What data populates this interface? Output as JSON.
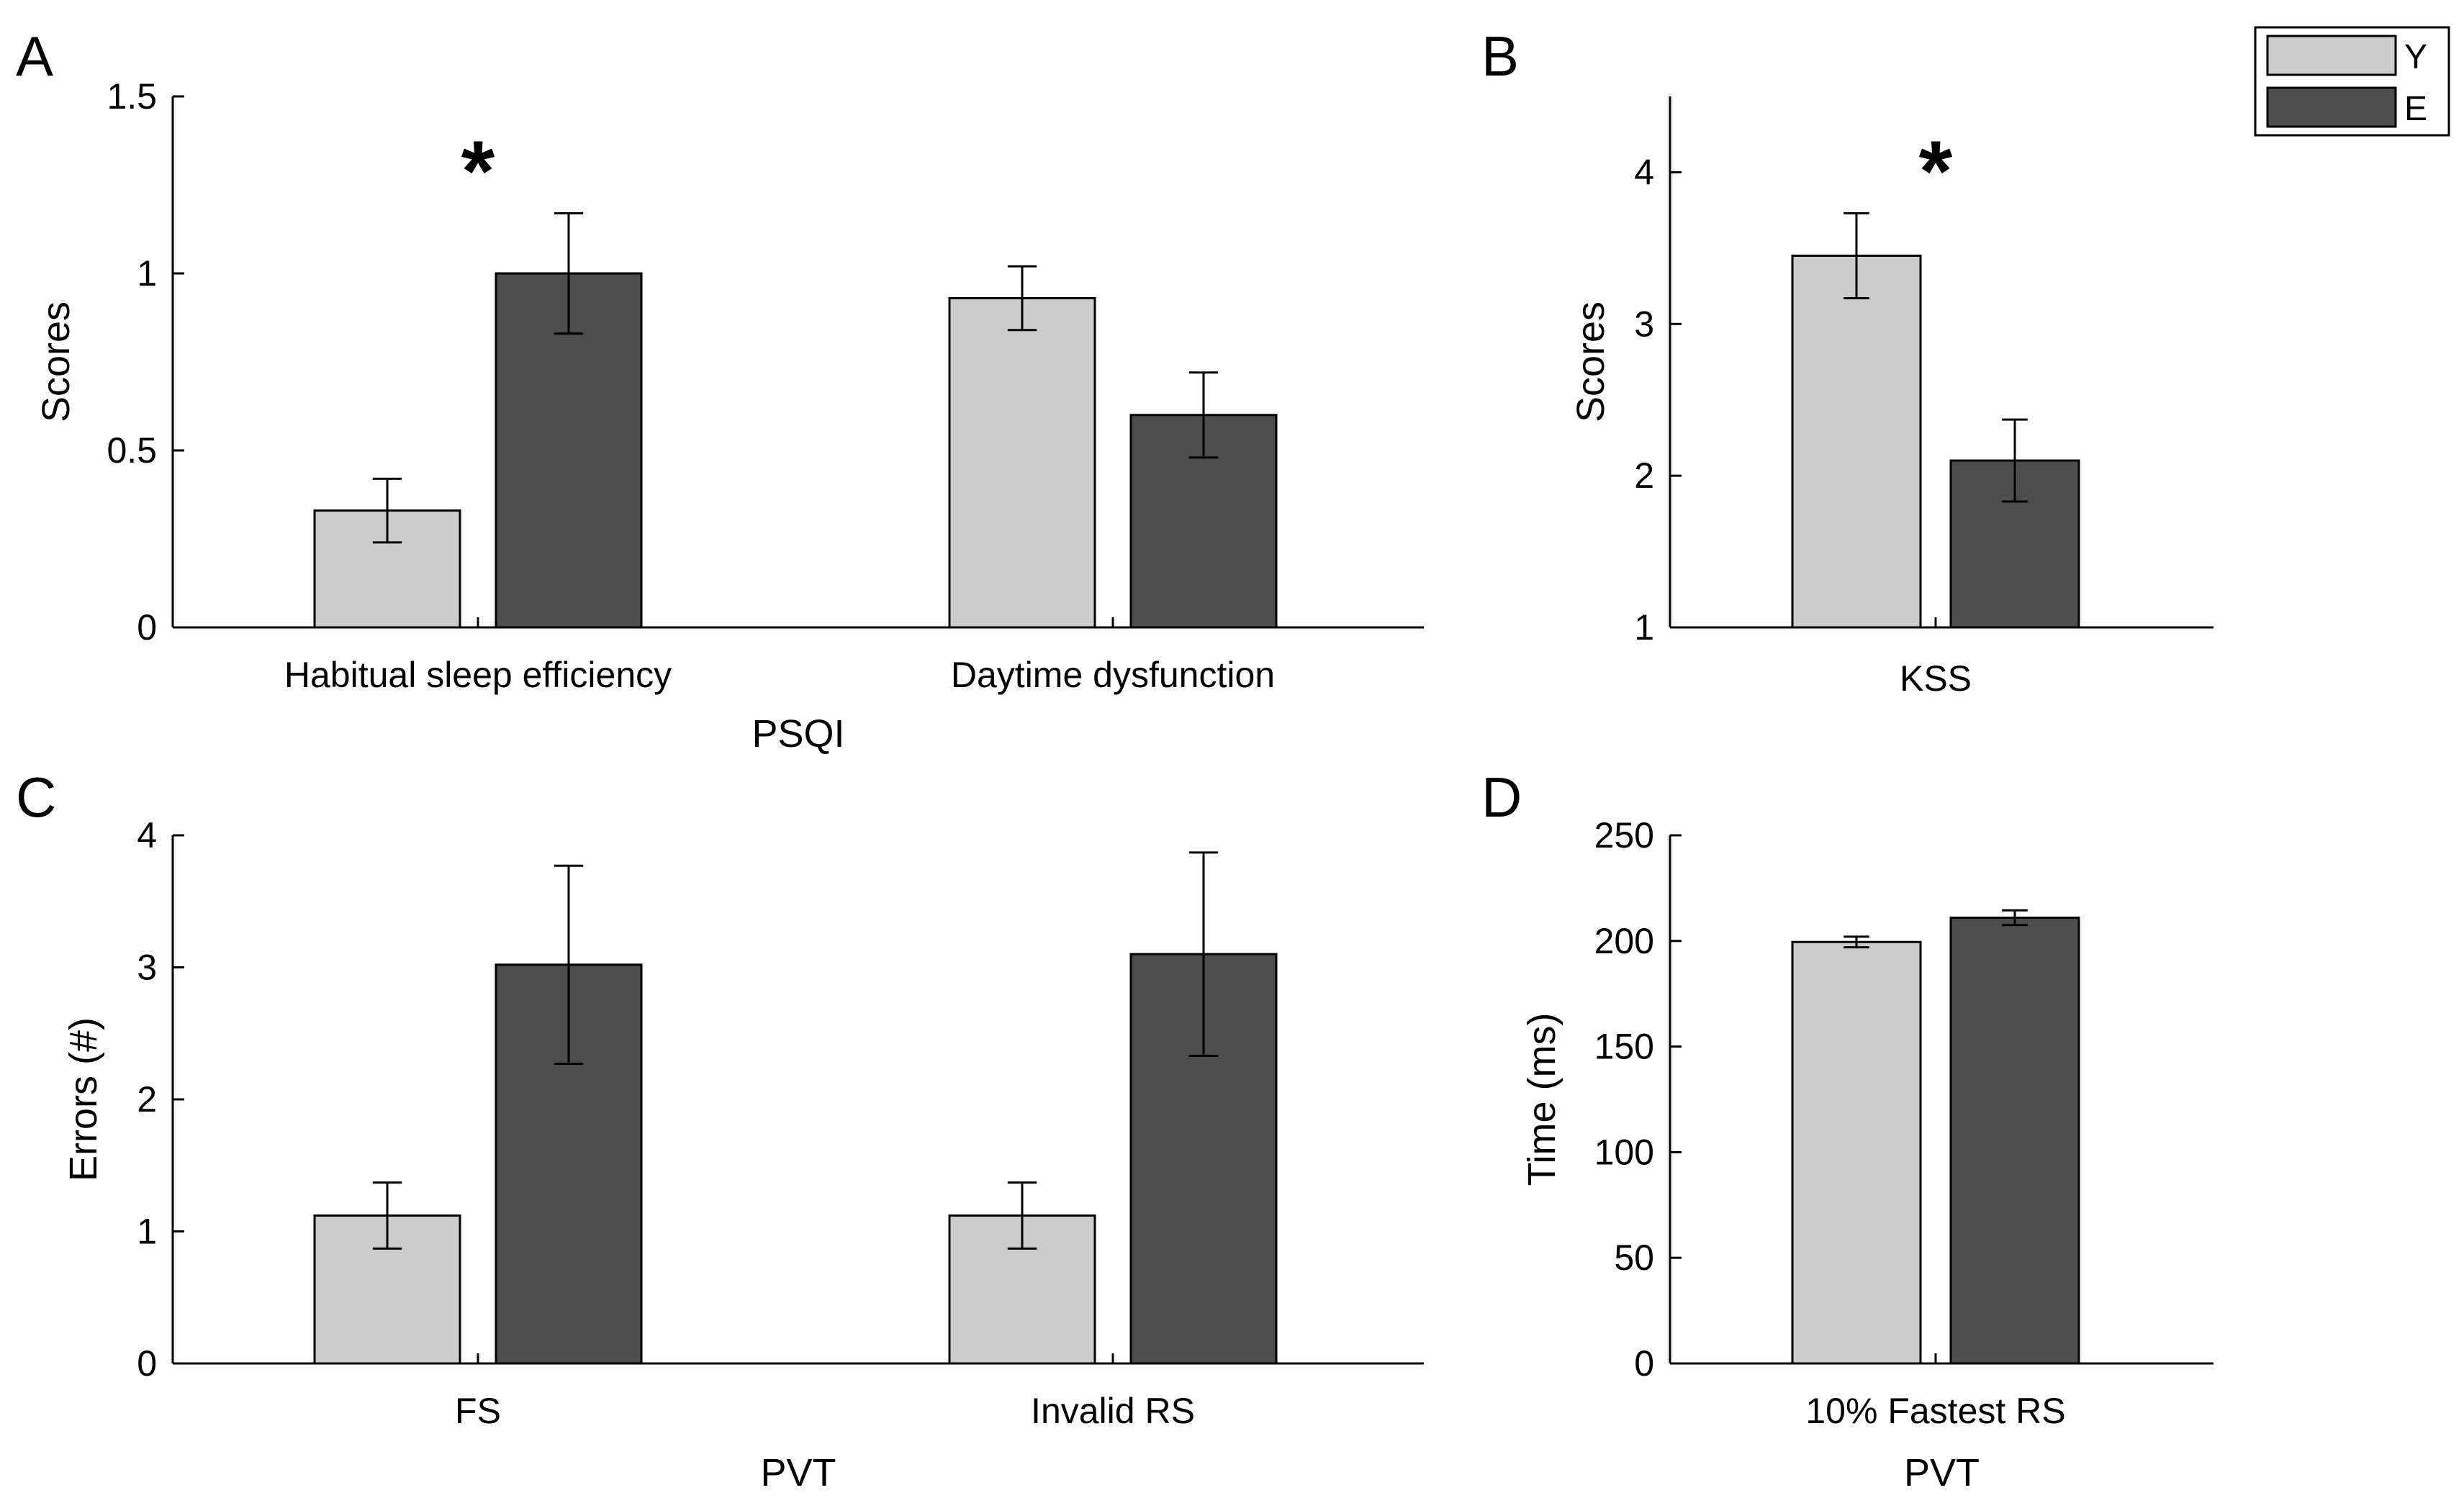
{
  "legend": {
    "entries": [
      {
        "label": "Y",
        "color": "#cccccc"
      },
      {
        "label": "E",
        "color": "#4d4d4d"
      }
    ],
    "placement": "top-right"
  },
  "chart_data": [
    {
      "panel": "A",
      "type": "bar",
      "categories": [
        "Habitual sleep efficiency",
        "Daytime dysfunction"
      ],
      "series": [
        {
          "name": "Y",
          "color": "#cccccc",
          "values": [
            0.33,
            0.93
          ],
          "errors": [
            0.09,
            0.09
          ]
        },
        {
          "name": "E",
          "color": "#4d4d4d",
          "values": [
            1.0,
            0.6
          ],
          "errors": [
            0.17,
            0.12
          ]
        }
      ],
      "title": "",
      "xlabel": "PSQI",
      "ylabel": "Scores",
      "ylim": [
        0,
        1.5
      ],
      "yticks": [
        0,
        0.5,
        1,
        1.5
      ],
      "ytick_labels": [
        "0",
        "0.5",
        "1",
        "1.5"
      ],
      "grid": false,
      "annotations": [
        {
          "text": "*",
          "category_index": 0
        }
      ]
    },
    {
      "panel": "B",
      "type": "bar",
      "categories": [
        "KSS"
      ],
      "series": [
        {
          "name": "Y",
          "color": "#cccccc",
          "values": [
            3.45
          ],
          "errors": [
            0.28
          ]
        },
        {
          "name": "E",
          "color": "#4d4d4d",
          "values": [
            2.1
          ],
          "errors": [
            0.27
          ]
        }
      ],
      "title": "",
      "xlabel": "",
      "ylabel": "Scores",
      "ylim": [
        1,
        4.5
      ],
      "yticks": [
        1,
        2,
        3,
        4
      ],
      "ytick_labels": [
        "1",
        "2",
        "3",
        "4"
      ],
      "grid": false,
      "annotations": [
        {
          "text": "*",
          "category_index": 0
        }
      ]
    },
    {
      "panel": "C",
      "type": "bar",
      "categories": [
        "FS",
        "Invalid RS"
      ],
      "series": [
        {
          "name": "Y",
          "color": "#cccccc",
          "values": [
            1.12,
            1.12
          ],
          "errors": [
            0.25,
            0.25
          ]
        },
        {
          "name": "E",
          "color": "#4d4d4d",
          "values": [
            3.02,
            3.1
          ],
          "errors": [
            0.75,
            0.77
          ]
        }
      ],
      "title": "",
      "xlabel": "PVT",
      "ylabel": "Errors (#)",
      "ylim": [
        0,
        4
      ],
      "yticks": [
        0,
        1,
        2,
        3,
        4
      ],
      "ytick_labels": [
        "0",
        "1",
        "2",
        "3",
        "4"
      ],
      "grid": false,
      "annotations": []
    },
    {
      "panel": "D",
      "type": "bar",
      "categories": [
        "10% Fastest RS"
      ],
      "series": [
        {
          "name": "Y",
          "color": "#cccccc",
          "values": [
            199.5
          ],
          "errors": [
            2.5
          ]
        },
        {
          "name": "E",
          "color": "#4d4d4d",
          "values": [
            211.0
          ],
          "errors": [
            3.5
          ]
        }
      ],
      "title": "",
      "xlabel": "PVT",
      "ylabel": "Time (ms)",
      "ylim": [
        0,
        250
      ],
      "yticks": [
        0,
        50,
        100,
        150,
        200,
        250
      ],
      "ytick_labels": [
        "0",
        "50",
        "100",
        "150",
        "200",
        "250"
      ],
      "grid": false,
      "annotations": []
    }
  ]
}
